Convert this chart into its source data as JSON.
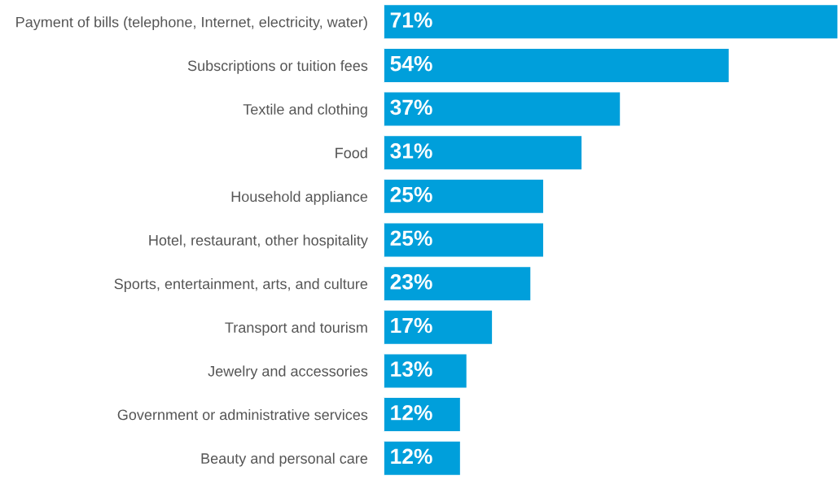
{
  "chart_data": {
    "type": "bar",
    "orientation": "horizontal",
    "categories": [
      "Payment of bills (telephone, Internet, electricity, water)",
      "Subscriptions or tuition fees",
      "Textile and clothing",
      "Food",
      "Household appliance",
      "Hotel, restaurant, other hospitality",
      "Sports, entertainment, arts, and culture",
      "Transport and tourism",
      "Jewelry and accessories",
      "Government or administrative services",
      "Beauty and personal care"
    ],
    "values": [
      71,
      54,
      37,
      31,
      25,
      25,
      23,
      17,
      13,
      12,
      12
    ],
    "value_labels": [
      "71%",
      "54%",
      "37%",
      "31%",
      "25%",
      "25%",
      "23%",
      "17%",
      "13%",
      "12%",
      "12%"
    ],
    "color": "#009fdb",
    "grid": false,
    "legend": false
  }
}
